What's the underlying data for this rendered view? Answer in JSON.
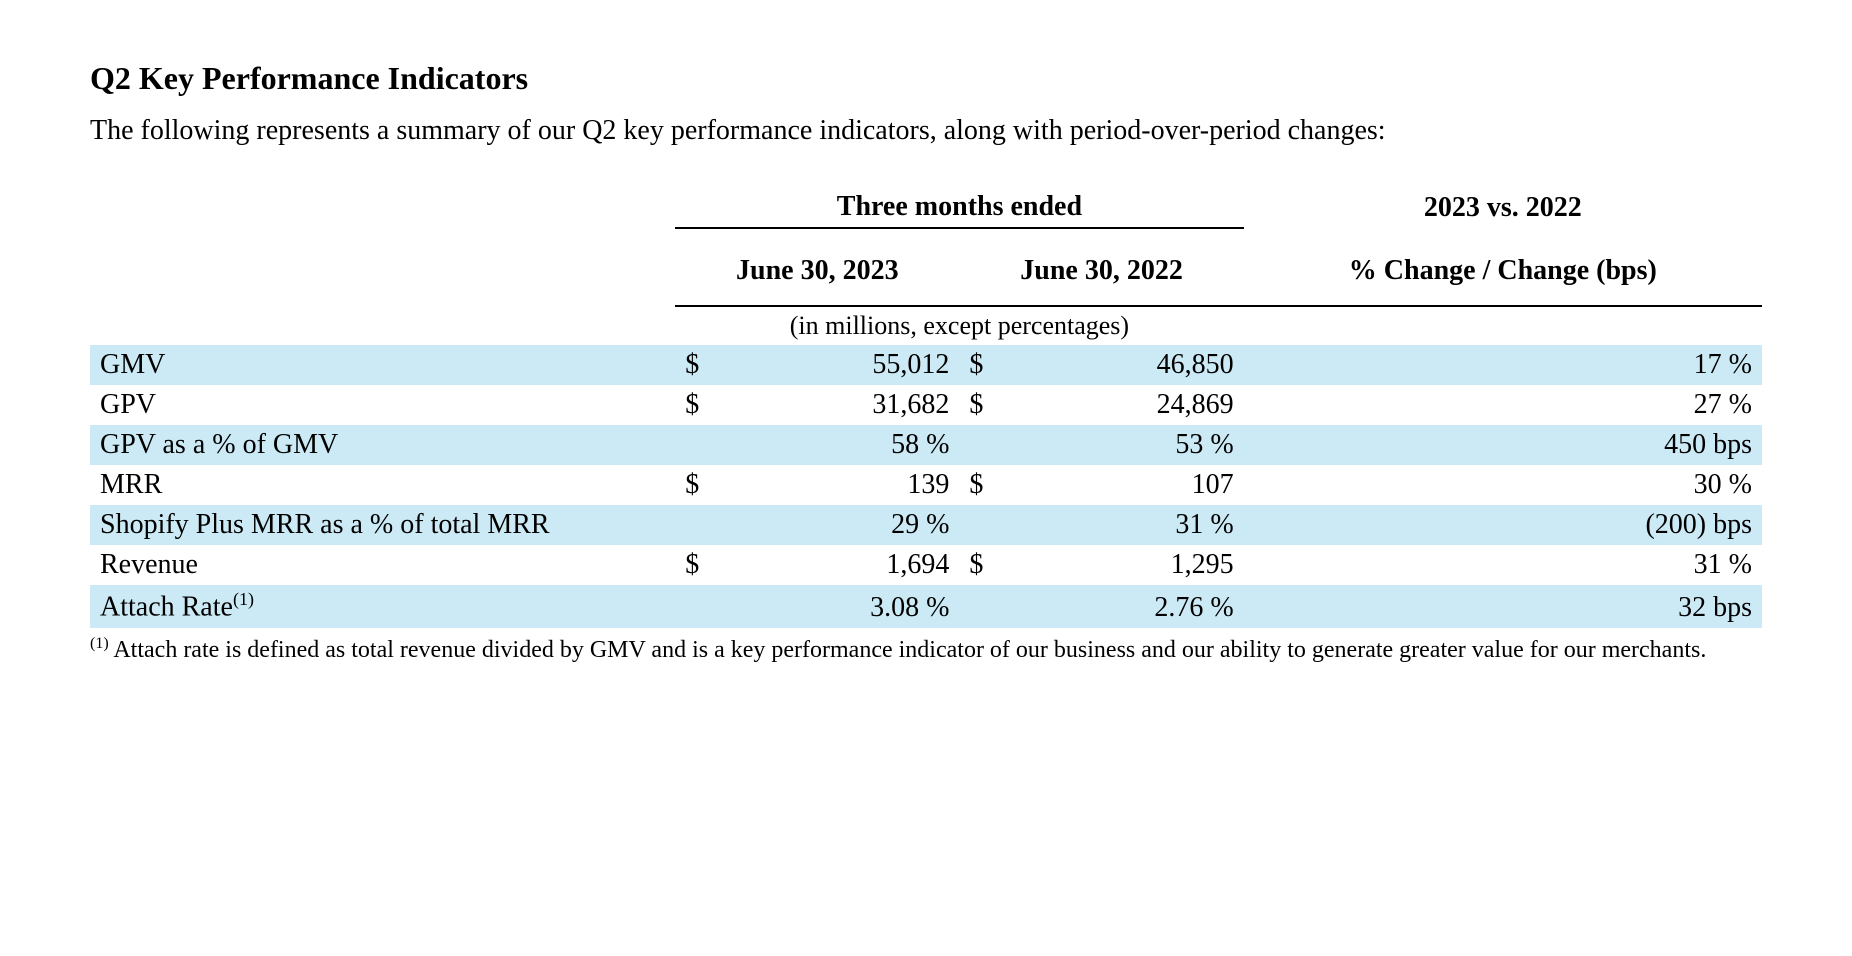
{
  "title": "Q2 Key Performance Indicators",
  "intro": "The following represents a summary of our Q2 key performance indicators, along with period-over-period changes:",
  "table": {
    "background_color": "#ffffff",
    "shade_color": "#cceaf5",
    "rule_color": "#000000",
    "font_family": "Times New Roman",
    "body_fontsize_pt": 21,
    "header_fontsize_pt": 21,
    "col_widths_pct": [
      35,
      3,
      14,
      3,
      14,
      31
    ],
    "header": {
      "span_period": "Three months ended",
      "compare": "2023 vs. 2022",
      "period1": "June 30, 2023",
      "period2": "June 30, 2022",
      "change_label": "% Change / Change (bps)",
      "units_note": "(in millions, except percentages)"
    },
    "rows": [
      {
        "shaded": true,
        "label": "GMV",
        "sup": "",
        "sym1": "$",
        "val1": "55,012",
        "sym2": "$",
        "val2": "46,850",
        "chg": "17 %"
      },
      {
        "shaded": false,
        "label": "GPV",
        "sup": "",
        "sym1": "$",
        "val1": "31,682",
        "sym2": "$",
        "val2": "24,869",
        "chg": "27 %"
      },
      {
        "shaded": true,
        "label": "GPV as a % of GMV",
        "sup": "",
        "sym1": "",
        "val1": "58 %",
        "sym2": "",
        "val2": "53 %",
        "chg": "450 bps"
      },
      {
        "shaded": false,
        "label": "MRR",
        "sup": "",
        "sym1": "$",
        "val1": "139",
        "sym2": "$",
        "val2": "107",
        "chg": "30 %"
      },
      {
        "shaded": true,
        "label": "Shopify Plus MRR as a % of total MRR",
        "sup": "",
        "sym1": "",
        "val1": "29 %",
        "sym2": "",
        "val2": "31 %",
        "chg": "(200) bps"
      },
      {
        "shaded": false,
        "label": "Revenue",
        "sup": "",
        "sym1": "$",
        "val1": "1,694",
        "sym2": "$",
        "val2": "1,295",
        "chg": "31 %"
      },
      {
        "shaded": true,
        "label": "Attach Rate",
        "sup": "(1)",
        "sym1": "",
        "val1": "3.08 %",
        "sym2": "",
        "val2": "2.76 %",
        "chg": "32 bps"
      }
    ]
  },
  "footnote": {
    "marker": "(1)",
    "text": "Attach rate is defined as total revenue divided by GMV and is a key performance indicator of our business and our ability to generate greater value for our merchants."
  }
}
